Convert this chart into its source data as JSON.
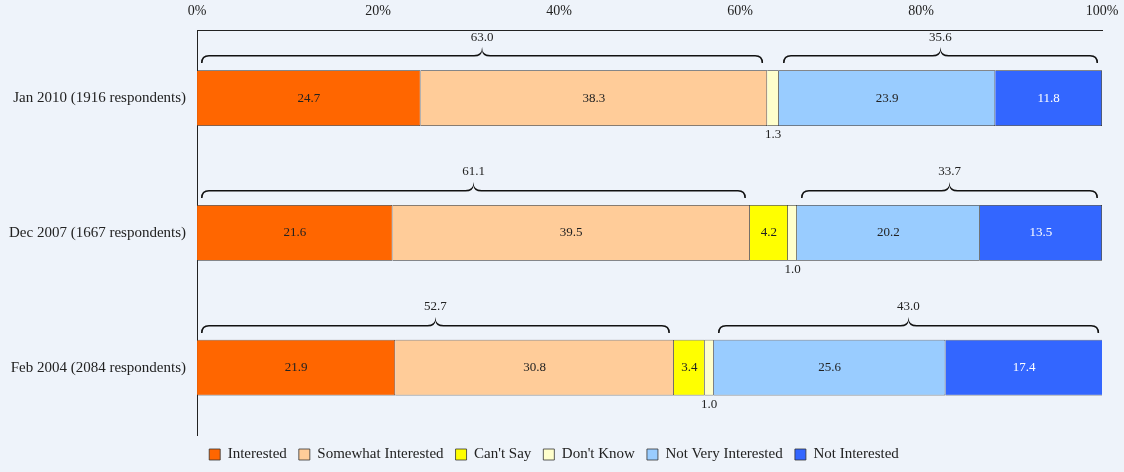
{
  "chart_data": {
    "type": "bar",
    "orientation": "horizontal",
    "stacked": true,
    "categories": [
      "Jan 2010 (1916 respondents)",
      "Dec 2007 (1667 respondents)",
      "Feb 2004 (2084 respondents)"
    ],
    "series": [
      {
        "name": "Interested",
        "color": "#ff6600",
        "values": [
          24.7,
          21.6,
          21.9
        ],
        "value_labels": [
          "24.7",
          "21.6",
          "21.9"
        ]
      },
      {
        "name": "Somewhat Interested",
        "color": "#ffcc99",
        "values": [
          38.3,
          39.5,
          30.8
        ],
        "value_labels": [
          "38.3",
          "39.5",
          "30.8"
        ]
      },
      {
        "name": "Can't Say",
        "color": "#ffff00",
        "values": [
          null,
          4.2,
          3.4
        ],
        "value_labels": [
          null,
          "4.2",
          "3.4"
        ]
      },
      {
        "name": "Don't Know",
        "color": "#ffffcc",
        "values": [
          1.3,
          1.0,
          1.0
        ],
        "value_labels": [
          "1.3",
          "1.0",
          "1.0"
        ]
      },
      {
        "name": "Not Very Interested",
        "color": "#99ccff",
        "values": [
          23.9,
          20.2,
          25.6
        ],
        "value_labels": [
          "23.9",
          "20.2",
          "25.6"
        ]
      },
      {
        "name": "Not Interested",
        "color": "#3366ff",
        "values": [
          11.8,
          13.5,
          17.4
        ],
        "value_labels": [
          "11.8",
          "13.5",
          "17.4"
        ]
      }
    ],
    "xlim": [
      0,
      100
    ],
    "xticks": [
      {
        "value": 0,
        "label": "0%"
      },
      {
        "value": 20,
        "label": "20%"
      },
      {
        "value": 40,
        "label": "40%"
      },
      {
        "value": 60,
        "label": "60%"
      },
      {
        "value": 80,
        "label": "80%"
      },
      {
        "value": 100,
        "label": "100%"
      }
    ],
    "grid": false,
    "legend": "bottom",
    "annotations": [
      "63.0",
      "35.6",
      "61.1",
      "33.7",
      "52.7",
      "43.0"
    ]
  }
}
